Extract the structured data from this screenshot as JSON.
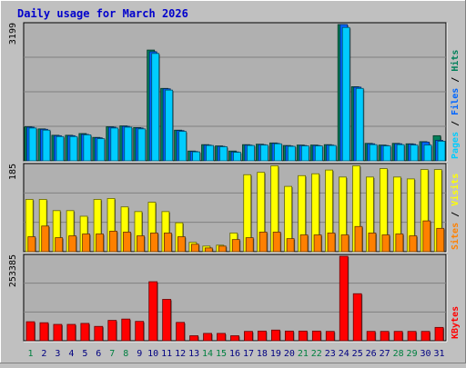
{
  "title": "Daily usage for March 2026",
  "colors": {
    "background": "#c0c0c0",
    "plot_bg": "#b0b0b0",
    "title": "#0000cc",
    "hits": "#00805a",
    "files": "#0066ff",
    "pages": "#00ccff",
    "visits": "#ffff00",
    "sites": "#ff8000",
    "kbytes": "#ff0000",
    "weekend_day": "#008040",
    "weekday": "#000080"
  },
  "chart_data": {
    "type": "bar",
    "days": [
      1,
      2,
      3,
      4,
      5,
      6,
      7,
      8,
      9,
      10,
      11,
      12,
      13,
      14,
      15,
      16,
      17,
      18,
      19,
      20,
      21,
      22,
      23,
      24,
      25,
      26,
      27,
      28,
      29,
      30,
      31
    ],
    "weekend_days": [
      1,
      7,
      8,
      14,
      15,
      21,
      22,
      28,
      29
    ],
    "panels": [
      {
        "id": "top",
        "max_label": "3199",
        "max": 3199,
        "legend": [
          {
            "text": "Pages",
            "color": "pages"
          },
          {
            "text": "Files",
            "color": "files"
          },
          {
            "text": "Hits",
            "color": "hits"
          }
        ],
        "series": [
          {
            "name": "Hits",
            "color": "hits",
            "values": [
              800,
              750,
              600,
              600,
              640,
              550,
              800,
              820,
              780,
              2600,
              1700,
              720,
              230,
              380,
              350,
              230,
              380,
              390,
              420,
              360,
              370,
              370,
              380,
              3199,
              1740,
              410,
              370,
              410,
              400,
              450,
              590
            ]
          },
          {
            "name": "Files",
            "color": "files",
            "values": [
              790,
              740,
              590,
              590,
              620,
              540,
              790,
              810,
              770,
              2560,
              1690,
              710,
              220,
              370,
              340,
              210,
              370,
              380,
              410,
              350,
              360,
              360,
              370,
              3199,
              1730,
              400,
              360,
              400,
              390,
              440,
              480
            ]
          },
          {
            "name": "Pages",
            "color": "pages",
            "values": [
              770,
              720,
              570,
              570,
              610,
              520,
              770,
              790,
              750,
              2520,
              1660,
              690,
              210,
              360,
              330,
              200,
              360,
              370,
              400,
              340,
              350,
              350,
              360,
              3130,
              1700,
              380,
              350,
              380,
              370,
              370,
              460
            ]
          }
        ]
      },
      {
        "id": "middle",
        "max_label": "185",
        "max": 185,
        "legend": [
          {
            "text": "Sites",
            "color": "sites"
          },
          {
            "text": "Visits",
            "color": "visits"
          }
        ],
        "series": [
          {
            "name": "Visits",
            "color": "visits",
            "values": [
              112,
              112,
              88,
              88,
              76,
              112,
              114,
              96,
              86,
              106,
              86,
              62,
              20,
              12,
              14,
              40,
              165,
              170,
              184,
              140,
              163,
              167,
              175,
              160,
              184,
              160,
              178,
              160,
              156,
              176,
              176
            ]
          },
          {
            "name": "Sites",
            "color": "sites",
            "values": [
              32,
              55,
              30,
              34,
              38,
              38,
              44,
              42,
              34,
              40,
              40,
              32,
              16,
              8,
              12,
              26,
              30,
              42,
              42,
              28,
              36,
              36,
              40,
              36,
              54,
              40,
              36,
              38,
              34,
              66,
              50
            ]
          }
        ]
      },
      {
        "id": "bottom",
        "max_label": "253385",
        "max": 253385,
        "legend": [
          {
            "text": "KBytes",
            "color": "kbytes"
          }
        ],
        "series": [
          {
            "name": "KBytes",
            "color": "kbytes",
            "values": [
              57000,
              54000,
              49000,
              49000,
              52000,
              43000,
              61000,
              65000,
              58000,
              177000,
              124000,
              55000,
              15000,
              22000,
              22000,
              15000,
              28000,
              29000,
              32000,
              29000,
              29000,
              29000,
              28000,
              253385,
              141000,
              28000,
              28000,
              28000,
              28000,
              28000,
              40000
            ]
          }
        ]
      }
    ]
  }
}
